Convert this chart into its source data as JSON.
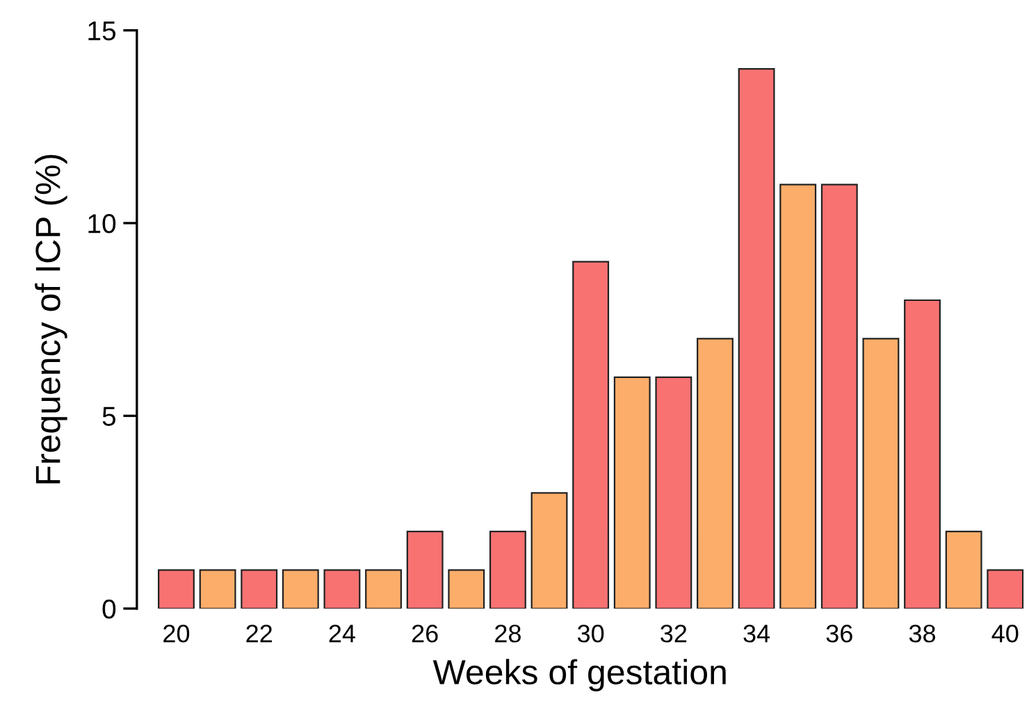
{
  "chart_data": {
    "type": "bar",
    "xlabel": "Weeks of gestation",
    "ylabel": "Frequency of ICP (%)",
    "categories": [
      "20",
      null,
      "22",
      null,
      "24",
      null,
      "26",
      null,
      "28",
      null,
      "30",
      null,
      "32",
      null,
      "34",
      null,
      "36",
      null,
      "38",
      null,
      "40"
    ],
    "values": [
      1,
      1,
      1,
      1,
      1,
      1,
      2,
      1,
      2,
      3,
      9,
      6,
      6,
      7,
      14,
      11,
      11,
      7,
      8,
      2,
      1
    ],
    "colors": [
      "#f87272",
      "#fcad6a",
      "#f87272",
      "#fcad6a",
      "#f87272",
      "#fcad6a",
      "#f87272",
      "#fcad6a",
      "#f87272",
      "#fcad6a",
      "#f87272",
      "#fcad6a",
      "#f87272",
      "#fcad6a",
      "#f87272",
      "#fcad6a",
      "#f87272",
      "#fcad6a",
      "#f87272",
      "#fcad6a",
      "#f87272"
    ],
    "ylim": [
      0,
      15
    ],
    "yticks": [
      0,
      5,
      10,
      15
    ],
    "grid": false,
    "legend": false
  }
}
